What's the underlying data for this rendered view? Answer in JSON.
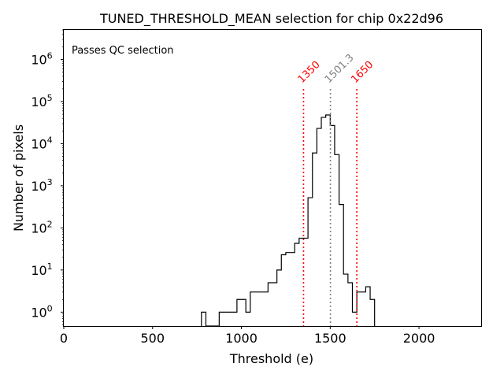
{
  "chart_data": {
    "type": "histogram",
    "title": "TUNED_THRESHOLD_MEAN selection for chip 0x22d96",
    "xlabel": "Threshold (e)",
    "ylabel": "Number of pixels",
    "xlim": [
      0,
      2350
    ],
    "ylim_log10": [
      -0.33,
      6.7
    ],
    "yscale": "log",
    "x_ticks": [
      {
        "value": 0,
        "label": "0"
      },
      {
        "value": 500,
        "label": "500"
      },
      {
        "value": 1000,
        "label": "1000"
      },
      {
        "value": 1500,
        "label": "1500"
      },
      {
        "value": 2000,
        "label": "2000"
      }
    ],
    "y_ticks": [
      {
        "exp": 0,
        "base": "10",
        "sup": "0"
      },
      {
        "exp": 1,
        "base": "10",
        "sup": "1"
      },
      {
        "exp": 2,
        "base": "10",
        "sup": "2"
      },
      {
        "exp": 3,
        "base": "10",
        "sup": "3"
      },
      {
        "exp": 4,
        "base": "10",
        "sup": "4"
      },
      {
        "exp": 5,
        "base": "10",
        "sup": "5"
      },
      {
        "exp": 6,
        "base": "10",
        "sup": "6"
      }
    ],
    "annotation": {
      "text": "Passes QC selection",
      "color": "#008000"
    },
    "bin_width": 25,
    "bins": [
      {
        "x": 775,
        "v": 1
      },
      {
        "x": 800,
        "v": 0
      },
      {
        "x": 825,
        "v": 0
      },
      {
        "x": 850,
        "v": 0
      },
      {
        "x": 875,
        "v": 1
      },
      {
        "x": 900,
        "v": 1
      },
      {
        "x": 925,
        "v": 1
      },
      {
        "x": 950,
        "v": 1
      },
      {
        "x": 975,
        "v": 2
      },
      {
        "x": 1000,
        "v": 2
      },
      {
        "x": 1025,
        "v": 1
      },
      {
        "x": 1050,
        "v": 3
      },
      {
        "x": 1075,
        "v": 3
      },
      {
        "x": 1100,
        "v": 3
      },
      {
        "x": 1125,
        "v": 3
      },
      {
        "x": 1150,
        "v": 5
      },
      {
        "x": 1175,
        "v": 5
      },
      {
        "x": 1200,
        "v": 10
      },
      {
        "x": 1225,
        "v": 23
      },
      {
        "x": 1250,
        "v": 26
      },
      {
        "x": 1275,
        "v": 26
      },
      {
        "x": 1300,
        "v": 43
      },
      {
        "x": 1325,
        "v": 57
      },
      {
        "x": 1350,
        "v": 57
      },
      {
        "x": 1375,
        "v": 520
      },
      {
        "x": 1400,
        "v": 6000
      },
      {
        "x": 1425,
        "v": 23000
      },
      {
        "x": 1450,
        "v": 42000
      },
      {
        "x": 1475,
        "v": 48000
      },
      {
        "x": 1500,
        "v": 27000
      },
      {
        "x": 1525,
        "v": 5500
      },
      {
        "x": 1550,
        "v": 360
      },
      {
        "x": 1575,
        "v": 8
      },
      {
        "x": 1600,
        "v": 5
      },
      {
        "x": 1625,
        "v": 1
      },
      {
        "x": 1650,
        "v": 3
      },
      {
        "x": 1675,
        "v": 3
      },
      {
        "x": 1700,
        "v": 4
      },
      {
        "x": 1725,
        "v": 2
      }
    ],
    "markers": [
      {
        "value": 1350,
        "label": "1350",
        "color": "#ff0000",
        "role": "lower-cut"
      },
      {
        "value": 1501.3,
        "label": "1501.3",
        "color": "#808080",
        "role": "mean"
      },
      {
        "value": 1650,
        "label": "1650",
        "color": "#ff0000",
        "role": "upper-cut"
      }
    ]
  }
}
